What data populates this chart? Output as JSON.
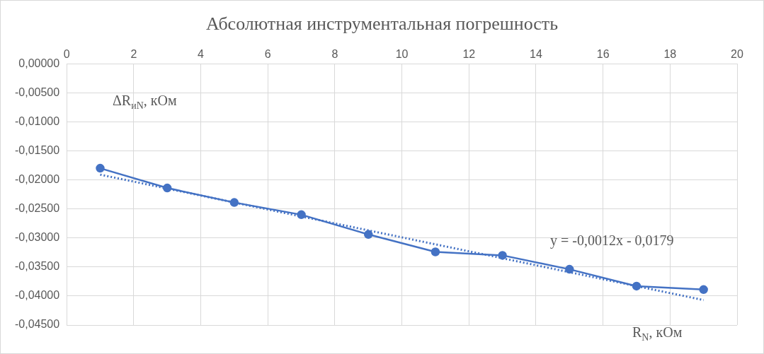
{
  "chart_data": {
    "type": "line",
    "title": "Абсолютная инструментальная погрешность",
    "xlabel": "R$_{N}$, кОм",
    "ylabel": "ΔR$_{иN}$, кОм",
    "x": [
      1,
      3,
      5,
      7,
      9,
      11,
      13,
      15,
      17,
      19
    ],
    "series": [
      {
        "color": "#4472c4",
        "values": [
          -0.018,
          -0.0214,
          -0.0239,
          -0.026,
          -0.0294,
          -0.0324,
          -0.033,
          -0.0354,
          -0.0383,
          -0.0389
        ],
        "marker": "circle",
        "line_style": "solid"
      },
      {
        "type": "line",
        "color": "#4472c4",
        "x": [
          1,
          19
        ],
        "values": [
          -0.0191,
          -0.0407
        ],
        "marker": "none",
        "line_style": "dotted"
      }
    ],
    "xlim": [
      0,
      20
    ],
    "xticks": [
      0,
      2,
      4,
      6,
      8,
      10,
      12,
      14,
      16,
      18,
      20
    ],
    "ylim": [
      -0.045,
      0
    ],
    "yticks": [
      {
        "value": 0,
        "label": "0,00000"
      },
      {
        "value": -0.005,
        "label": "-0,00500"
      },
      {
        "value": -0.01,
        "label": "-0,01000"
      },
      {
        "value": -0.015,
        "label": "-0,01500"
      },
      {
        "value": -0.02,
        "label": "-0,02000"
      },
      {
        "value": -0.025,
        "label": "-0,02500"
      },
      {
        "value": -0.03,
        "label": "-0,03000"
      },
      {
        "value": -0.035,
        "label": "-0,03500"
      },
      {
        "value": -0.04,
        "label": "-0,04000"
      },
      {
        "value": -0.045,
        "label": "-0,04500"
      }
    ],
    "grid": true,
    "legend": false,
    "annotations": [
      "y = -0,0012x - 0,0179"
    ]
  }
}
